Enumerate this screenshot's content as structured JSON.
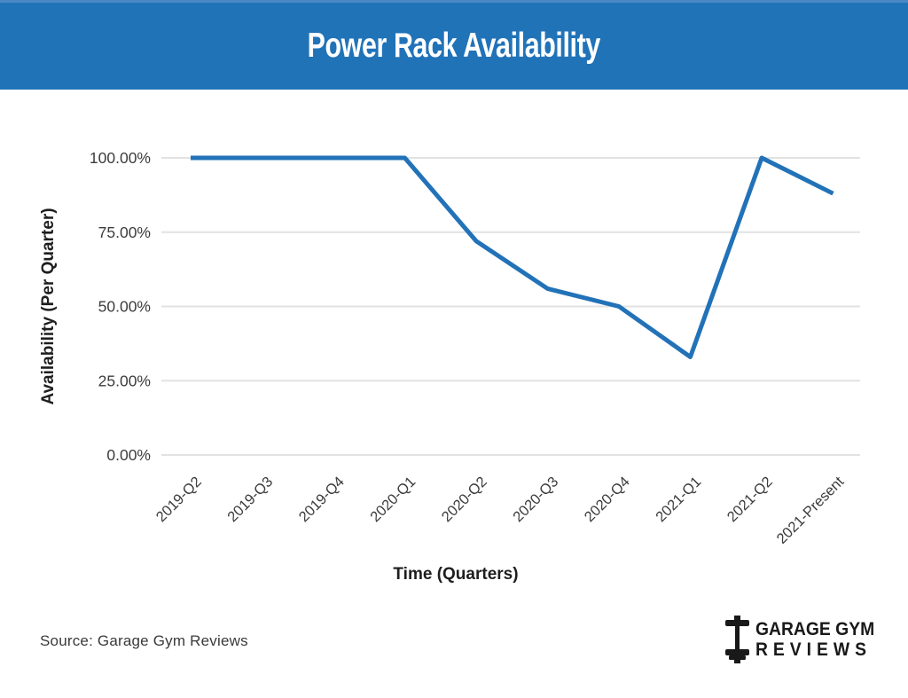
{
  "header": {
    "title": "Power Rack Availability",
    "bg_color": "#2173b8",
    "text_color": "#ffffff"
  },
  "chart_data": {
    "type": "line",
    "title": "Power Rack Availability",
    "categories": [
      "2019-Q2",
      "2019-Q3",
      "2019-Q4",
      "2020-Q1",
      "2020-Q2",
      "2020-Q3",
      "2020-Q4",
      "2021-Q1",
      "2021-Q2",
      "2021-Present"
    ],
    "values": [
      100,
      100,
      100,
      100,
      72,
      56,
      50,
      33,
      100,
      88
    ],
    "xlabel": "Time (Quarters)",
    "ylabel": "Availability (Per Quarter)",
    "ylim": [
      0,
      100
    ],
    "yticks": [
      0,
      25,
      50,
      75,
      100
    ],
    "ytick_labels": [
      "0.00%",
      "25.00%",
      "50.00%",
      "75.00%",
      "100.00%"
    ],
    "grid": true,
    "legend": false,
    "line_color": "#2272b8",
    "grid_color": "#e2e2e2",
    "tick_text_color": "#3c3c3c",
    "axis_title_color": "#1e1e1e"
  },
  "footer": {
    "source": "Source: Garage Gym Reviews"
  },
  "logo": {
    "line1": "GARAGE GYM",
    "line2": "REVIEWS",
    "icon": "dumbbell-icon",
    "color": "#191919"
  }
}
